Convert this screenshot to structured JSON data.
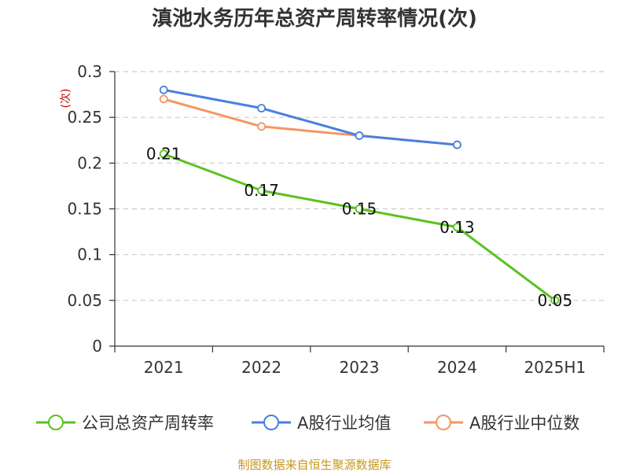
{
  "chart_data": {
    "type": "line",
    "title": "滇池水务历年总资产周转率情况(次)",
    "xlabel": "",
    "ylabel": "(次)",
    "categories": [
      "2021",
      "2022",
      "2023",
      "2024",
      "2025H1"
    ],
    "ylim": [
      0,
      0.3
    ],
    "yticks": [
      0,
      0.05,
      0.1,
      0.15,
      0.2,
      0.25,
      0.3
    ],
    "ytick_labels": [
      "0",
      "0.05",
      "0.1",
      "0.15",
      "0.2",
      "0.25",
      "0.3"
    ],
    "grid": true,
    "legend_position": "bottom",
    "series": [
      {
        "name": "公司总资产周转率",
        "color": "#5ac21f",
        "values": [
          0.21,
          0.17,
          0.15,
          0.13,
          0.05
        ],
        "data_labels": [
          "0.21",
          "0.17",
          "0.15",
          "0.13",
          "0.05"
        ]
      },
      {
        "name": "A股行业均值",
        "color": "#4a7fde",
        "values": [
          0.28,
          0.26,
          0.23,
          0.22,
          null
        ]
      },
      {
        "name": "A股行业中位数",
        "color": "#f59563",
        "values": [
          0.27,
          0.24,
          0.23,
          0.22,
          null
        ]
      }
    ],
    "source": "制图数据来自恒生聚源数据库"
  }
}
